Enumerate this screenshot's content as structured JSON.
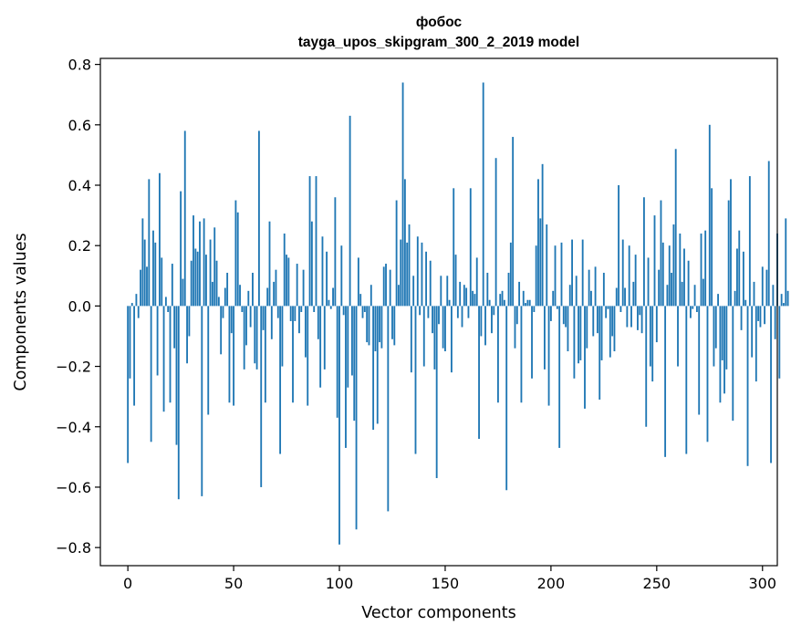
{
  "chart_data": {
    "type": "bar",
    "title": "фобос",
    "subtitle": "tayga_upos_skipgram_300_2_2019 model",
    "xlabel": "Vector components",
    "ylabel": "Components values",
    "xlim": [
      -13,
      307
    ],
    "ylim": [
      -0.86,
      0.82
    ],
    "xticks": [
      0,
      50,
      100,
      150,
      200,
      250,
      300
    ],
    "yticks": [
      -0.8,
      -0.6,
      -0.4,
      -0.2,
      0.0,
      0.2,
      0.4,
      0.6,
      0.8
    ],
    "ytick_labels": [
      "−0.8",
      "−0.6",
      "−0.4",
      "−0.2",
      "0.0",
      "0.2",
      "0.4",
      "0.6",
      "0.8"
    ],
    "bar_color": "#1f77b4",
    "values": [
      -0.52,
      -0.24,
      0.01,
      -0.33,
      0.04,
      -0.04,
      0.12,
      0.29,
      0.22,
      0.13,
      0.42,
      -0.45,
      0.25,
      0.21,
      -0.23,
      0.44,
      0.16,
      -0.35,
      0.03,
      -0.02,
      -0.32,
      0.14,
      -0.14,
      -0.46,
      -0.64,
      0.38,
      0.09,
      0.58,
      -0.19,
      -0.1,
      0.15,
      0.3,
      0.19,
      0.18,
      0.28,
      -0.63,
      0.29,
      0.17,
      -0.36,
      0.22,
      0.08,
      0.26,
      0.15,
      0.03,
      -0.16,
      -0.04,
      0.06,
      0.11,
      -0.32,
      -0.09,
      -0.33,
      0.35,
      0.31,
      0.07,
      -0.02,
      -0.21,
      -0.13,
      0.05,
      -0.07,
      0.11,
      -0.19,
      -0.21,
      0.58,
      -0.6,
      -0.08,
      -0.32,
      0.06,
      0.28,
      -0.11,
      0.08,
      0.12,
      -0.04,
      -0.49,
      -0.2,
      0.24,
      0.17,
      0.16,
      -0.05,
      -0.32,
      -0.05,
      0.14,
      -0.09,
      -0.02,
      0.12,
      -0.17,
      -0.33,
      0.43,
      0.28,
      -0.02,
      0.43,
      -0.11,
      -0.27,
      0.23,
      -0.21,
      0.18,
      0.02,
      -0.01,
      0.06,
      0.36,
      -0.37,
      -0.79,
      0.2,
      -0.03,
      -0.47,
      -0.27,
      0.63,
      -0.23,
      -0.38,
      -0.74,
      0.16,
      0.04,
      -0.04,
      -0.02,
      -0.12,
      -0.13,
      0.07,
      -0.41,
      -0.15,
      -0.39,
      -0.12,
      -0.14,
      0.13,
      0.14,
      -0.68,
      0.12,
      -0.11,
      -0.13,
      0.35,
      0.07,
      0.22,
      0.74,
      0.42,
      0.21,
      0.27,
      -0.22,
      0.1,
      -0.49,
      0.23,
      -0.03,
      0.21,
      -0.2,
      0.18,
      -0.04,
      0.15,
      -0.09,
      -0.21,
      -0.57,
      -0.06,
      0.1,
      -0.14,
      -0.15,
      0.1,
      0.02,
      -0.22,
      0.39,
      0.17,
      -0.04,
      0.08,
      -0.07,
      0.07,
      0.06,
      -0.04,
      0.39,
      0.05,
      0.04,
      0.16,
      -0.44,
      -0.1,
      0.74,
      -0.13,
      0.11,
      0.02,
      -0.09,
      -0.03,
      0.49,
      -0.32,
      0.04,
      0.05,
      0.02,
      -0.61,
      0.11,
      0.21,
      0.56,
      -0.14,
      -0.06,
      0.08,
      -0.32,
      0.05,
      0.01,
      0.02,
      0.02,
      -0.24,
      -0.02,
      0.2,
      0.42,
      0.29,
      0.47,
      -0.21,
      0.27,
      -0.33,
      -0.05,
      0.05,
      0.2,
      -0.01,
      -0.47,
      0.21,
      -0.06,
      -0.07,
      -0.15,
      0.07,
      0.22,
      -0.24,
      0.1,
      -0.19,
      -0.18,
      0.22,
      -0.34,
      -0.14,
      0.12,
      0.05,
      -0.1,
      0.13,
      -0.09,
      -0.31,
      -0.18,
      0.11,
      -0.04,
      -0.01,
      -0.17,
      -0.1,
      -0.15,
      0.06,
      0.4,
      -0.02,
      0.22,
      0.06,
      -0.07,
      0.2,
      -0.07,
      0.08,
      0.17,
      -0.08,
      -0.03,
      -0.09,
      0.36,
      -0.4,
      0.16,
      -0.2,
      -0.25,
      0.3,
      -0.12,
      0.12,
      0.35,
      0.21,
      -0.5,
      0.07,
      0.2,
      0.11,
      0.27,
      0.52,
      -0.2,
      0.24,
      0.08,
      0.19,
      -0.49,
      0.15,
      -0.04,
      -0.01,
      0.07,
      -0.02,
      -0.36,
      0.24,
      0.09,
      0.25,
      -0.45,
      0.6,
      0.39,
      -0.2,
      -0.14,
      0.04,
      -0.32,
      -0.18,
      -0.29,
      -0.21,
      0.35,
      0.42,
      -0.38,
      0.05,
      0.19,
      0.25,
      -0.08,
      0.18,
      0.02,
      -0.53,
      0.43,
      -0.17,
      0.08,
      -0.25,
      -0.05,
      -0.07,
      0.13,
      -0.06,
      0.12,
      0.48,
      -0.52,
      0.07,
      -0.11,
      0.24,
      -0.24,
      0.04,
      0.01,
      0.29,
      0.05
    ]
  }
}
